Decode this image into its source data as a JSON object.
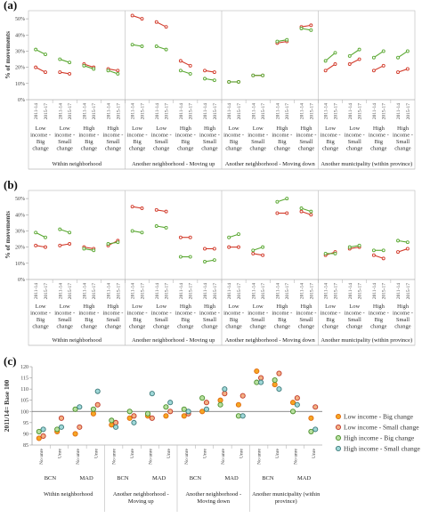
{
  "chart_data": [
    {
      "type": "line",
      "panel": "(a)",
      "ylabel": "% of movements",
      "ylim": [
        0,
        55
      ],
      "yticks": [
        "0%",
        "10%",
        "20%",
        "30%",
        "40%",
        "50%"
      ],
      "periods": [
        "2011-14",
        "2015-17"
      ],
      "categories": [
        "Low income - Big change",
        "Low income - Small change",
        "High income - Big change",
        "High income - Small change"
      ],
      "category_lines": [
        [
          "Low",
          "income -",
          "Big",
          "change"
        ],
        [
          "Low",
          "income -",
          "Small",
          "change"
        ],
        [
          "High",
          "income -",
          "Big",
          "change"
        ],
        [
          "High",
          "income -",
          "Small",
          "change"
        ]
      ],
      "groups": [
        "Within neighborhood",
        "Another neighborhood - Moving up",
        "Another neighborhood - Moving down",
        "Another municipality (within province)"
      ],
      "series": [
        {
          "name": "red",
          "color": "#d23a2a",
          "values": [
            [
              20,
              17
            ],
            [
              17,
              16
            ],
            [
              22,
              20
            ],
            [
              19,
              18
            ],
            [
              52,
              50
            ],
            [
              48,
              45
            ],
            [
              24,
              21
            ],
            [
              18,
              17
            ],
            [
              11,
              11
            ],
            [
              15,
              15
            ],
            [
              35,
              36
            ],
            [
              45,
              46
            ],
            [
              18,
              22
            ],
            [
              22,
              25
            ],
            [
              18,
              21
            ],
            [
              17,
              19
            ]
          ]
        },
        {
          "name": "green",
          "color": "#5aa832",
          "values": [
            [
              31,
              28
            ],
            [
              25,
              23
            ],
            [
              21,
              19
            ],
            [
              18,
              16
            ],
            [
              34,
              33
            ],
            [
              33,
              31
            ],
            [
              18,
              16
            ],
            [
              13,
              12
            ],
            [
              11,
              11
            ],
            [
              15,
              15
            ],
            [
              36,
              37
            ],
            [
              44,
              43
            ],
            [
              24,
              29
            ],
            [
              27,
              31
            ],
            [
              26,
              30
            ],
            [
              26,
              30
            ]
          ]
        }
      ]
    },
    {
      "type": "line",
      "panel": "(b)",
      "ylabel": "% of movements",
      "ylim": [
        0,
        55
      ],
      "yticks": [
        "0%",
        "10%",
        "20%",
        "30%",
        "40%",
        "50%"
      ],
      "periods": [
        "2011-14",
        "2015-17"
      ],
      "categories": [
        "Low income - Big change",
        "Low income - Small change",
        "High income - Big change",
        "High income - Small change"
      ],
      "category_lines": [
        [
          "Low",
          "income -",
          "Big",
          "change"
        ],
        [
          "Low",
          "income -",
          "Small",
          "change"
        ],
        [
          "High",
          "income -",
          "Big",
          "change"
        ],
        [
          "High",
          "income -",
          "Small",
          "change"
        ]
      ],
      "groups": [
        "Within neighborhood",
        "Another neighborhood - Moving up",
        "Another neighborhood - Moving down",
        "Another municipality (within province)"
      ],
      "series": [
        {
          "name": "red",
          "color": "#d23a2a",
          "values": [
            [
              21,
              20
            ],
            [
              21,
              22
            ],
            [
              20,
              19
            ],
            [
              21,
              24
            ],
            [
              45,
              44
            ],
            [
              43,
              42
            ],
            [
              26,
              26
            ],
            [
              19,
              19
            ],
            [
              20,
              20
            ],
            [
              16,
              15
            ],
            [
              41,
              41
            ],
            [
              42,
              40
            ],
            [
              15,
              17
            ],
            [
              19,
              20
            ],
            [
              15,
              13
            ],
            [
              17,
              19
            ]
          ]
        },
        {
          "name": "green",
          "color": "#5aa832",
          "values": [
            [
              29,
              26
            ],
            [
              31,
              29
            ],
            [
              19,
              18
            ],
            [
              22,
              23
            ],
            [
              30,
              29
            ],
            [
              33,
              32
            ],
            [
              14,
              14
            ],
            [
              11,
              12
            ],
            [
              26,
              28
            ],
            [
              18,
              20
            ],
            [
              48,
              50
            ],
            [
              44,
              42
            ],
            [
              16,
              16
            ],
            [
              20,
              21
            ],
            [
              18,
              18
            ],
            [
              24,
              23
            ]
          ]
        }
      ]
    },
    {
      "type": "scatter",
      "panel": "(c)",
      "ylabel": "2011/14= Base 100",
      "ylim": [
        85,
        120
      ],
      "yticks": [
        85,
        90,
        95,
        100,
        105,
        110,
        115,
        120
      ],
      "reference_line": 100,
      "subcategories": [
        "No unre",
        "Unre"
      ],
      "cities": [
        "BCN",
        "MAD"
      ],
      "groups": [
        "Within neighborhood",
        "Another neighborhood - Moving up",
        "Another neighborhood - Moving down",
        "Another municipality (within province)"
      ],
      "group_lines": [
        [
          "Within neighborhood"
        ],
        [
          "Another neighborhood -",
          "Moving up"
        ],
        [
          "Another neighborhood -",
          "Moving down"
        ],
        [
          "Another municipality (within",
          "province)"
        ]
      ],
      "legend": [
        {
          "name": "Low income - Big change",
          "face": "#f5a623",
          "edge": "#e06a10"
        },
        {
          "name": "Low income - Small change",
          "face": "#f4b183",
          "edge": "#c0392b"
        },
        {
          "name": "High income - Big change",
          "face": "#b8e0a0",
          "edge": "#4a8f2a"
        },
        {
          "name": "High income - Small change",
          "face": "#9fd8d8",
          "edge": "#3d7a7a"
        }
      ],
      "series": [
        {
          "name": "Low income - Big change",
          "values": [
            88,
            91,
            90,
            99,
            94,
            97,
            98,
            98,
            98,
            100,
            105,
            103,
            118,
            112,
            104,
            97
          ]
        },
        {
          "name": "Low income - Small change",
          "values": [
            89,
            97,
            93,
            103,
            95,
            98,
            97,
            100,
            99,
            104,
            108,
            107,
            115,
            117,
            106,
            102
          ]
        },
        {
          "name": "High income - Big change",
          "values": [
            91,
            92,
            101,
            101,
            96,
            100,
            99,
            102,
            101,
            106,
            103,
            98,
            113,
            114,
            100,
            91
          ]
        },
        {
          "name": "High income - Small change",
          "values": [
            92,
            93,
            102,
            109,
            93,
            95,
            108,
            104,
            100,
            101,
            110,
            98,
            113,
            110,
            103,
            92
          ]
        }
      ]
    }
  ]
}
